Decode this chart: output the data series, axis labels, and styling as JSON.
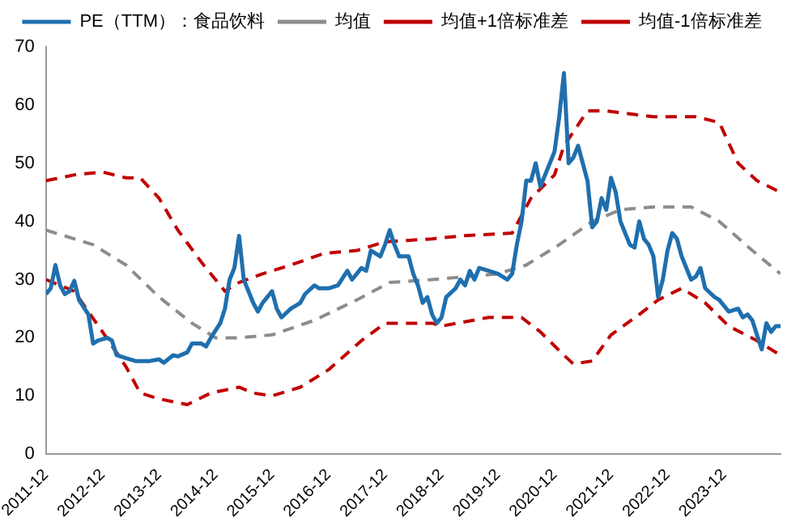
{
  "chart_data": {
    "type": "line",
    "legend": "top",
    "grid": false,
    "marker": "none",
    "xlim": [
      "2011-12",
      "2024-12"
    ],
    "xticks": [
      "2011-12",
      "2012-12",
      "2013-12",
      "2014-12",
      "2015-12",
      "2016-12",
      "2017-12",
      "2018-12",
      "2019-12",
      "2020-12",
      "2021-12",
      "2022-12",
      "2023-12"
    ],
    "ylim": [
      0,
      70
    ],
    "yticks": [
      0,
      10,
      20,
      30,
      40,
      50,
      60,
      70
    ],
    "series": [
      {
        "name": "PE（TTM）：食品饮料",
        "color": "#1f6fae",
        "line_style": "solid",
        "x": [
          "2011-12",
          "2012-01",
          "2012-02",
          "2012-03",
          "2012-04",
          "2012-05",
          "2012-06",
          "2012-07",
          "2012-09",
          "2012-10",
          "2012-11",
          "2013-01",
          "2013-02",
          "2013-03",
          "2013-05",
          "2013-07",
          "2013-10",
          "2013-12",
          "2014-01",
          "2014-03",
          "2014-04",
          "2014-06",
          "2014-07",
          "2014-09",
          "2014-10",
          "2014-11",
          "2015-01",
          "2015-02",
          "2015-03",
          "2015-04",
          "2015-05",
          "2015-06",
          "2015-08",
          "2015-09",
          "2015-10",
          "2015-11",
          "2015-12",
          "2016-01",
          "2016-02",
          "2016-04",
          "2016-06",
          "2016-07",
          "2016-09",
          "2016-10",
          "2016-12",
          "2017-02",
          "2017-04",
          "2017-05",
          "2017-07",
          "2017-08",
          "2017-09",
          "2017-11",
          "2017-12",
          "2018-01",
          "2018-02",
          "2018-03",
          "2018-05",
          "2018-06",
          "2018-07",
          "2018-08",
          "2018-09",
          "2018-10",
          "2018-11",
          "2018-12",
          "2019-01",
          "2019-03",
          "2019-04",
          "2019-05",
          "2019-06",
          "2019-07",
          "2019-08",
          "2019-10",
          "2019-12",
          "2020-02",
          "2020-03",
          "2020-04",
          "2020-05",
          "2020-06",
          "2020-07",
          "2020-08",
          "2020-09",
          "2020-10",
          "2020-11",
          "2020-12",
          "2021-01",
          "2021-02",
          "2021-03",
          "2021-04",
          "2021-05",
          "2021-06",
          "2021-07",
          "2021-08",
          "2021-09",
          "2021-10",
          "2021-11",
          "2021-12",
          "2022-01",
          "2022-02",
          "2022-03",
          "2022-04",
          "2022-05",
          "2022-06",
          "2022-07",
          "2022-08",
          "2022-09",
          "2022-10",
          "2022-11",
          "2022-12",
          "2023-01",
          "2023-02",
          "2023-03",
          "2023-05",
          "2023-06",
          "2023-07",
          "2023-08",
          "2023-10",
          "2023-11",
          "2023-12",
          "2024-01",
          "2024-03",
          "2024-04",
          "2024-05",
          "2024-06",
          "2024-07",
          "2024-08",
          "2024-09",
          "2024-10",
          "2024-11",
          "2024-12"
        ],
        "values": [
          27.5,
          28.5,
          32.5,
          29,
          27.5,
          28,
          29.8,
          26.5,
          24,
          19,
          19.5,
          20,
          19.5,
          17,
          16.5,
          16,
          16,
          16.3,
          15.7,
          17,
          16.8,
          17.5,
          19,
          19,
          18.5,
          20,
          22.5,
          25,
          30,
          32,
          37.5,
          30,
          26,
          24.5,
          26,
          27,
          28,
          25,
          23.5,
          25,
          26,
          27.5,
          29,
          28.5,
          28.5,
          29,
          31.5,
          30,
          32,
          31.5,
          35,
          34,
          36,
          38.5,
          36,
          34,
          34,
          31,
          29,
          26,
          27,
          24,
          22.5,
          23.5,
          27,
          28.5,
          30,
          29,
          31.5,
          30,
          32,
          31.5,
          31,
          30,
          31,
          36,
          40,
          47,
          47,
          50,
          46,
          48,
          50,
          52,
          58,
          65.5,
          50,
          51,
          53,
          50,
          47,
          39,
          40,
          44,
          42,
          47.5,
          45,
          40,
          38,
          36,
          35.5,
          40,
          37,
          36,
          34,
          27,
          30,
          35,
          38,
          37,
          34,
          30,
          30.5,
          32,
          28.5,
          27,
          26.5,
          25.5,
          24.5,
          25,
          23.5,
          24,
          23,
          20.5,
          18,
          22.5,
          21,
          22,
          22
        ]
      },
      {
        "name": "均值",
        "color": "#8c8c8c",
        "line_style": "dashed",
        "x": [
          "2011-12",
          "2012-10",
          "2013-05",
          "2013-12",
          "2014-07",
          "2014-12",
          "2015-05",
          "2015-12",
          "2016-09",
          "2017-06",
          "2018-01",
          "2018-10",
          "2019-12",
          "2020-06",
          "2021-01",
          "2021-08",
          "2022-02",
          "2022-09",
          "2023-05",
          "2023-11",
          "2024-06",
          "2024-12"
        ],
        "values": [
          38.5,
          36,
          32.5,
          27,
          22.5,
          20,
          20,
          20.5,
          23,
          26.5,
          29.5,
          30,
          31,
          32.5,
          36,
          40,
          42,
          42.5,
          42.5,
          40,
          35,
          31
        ]
      },
      {
        "name": "均值+1倍标准差",
        "color": "#c00000",
        "line_style": "dashed",
        "x": [
          "2011-12",
          "2012-06",
          "2012-12",
          "2013-05",
          "2013-08",
          "2013-12",
          "2014-04",
          "2014-09",
          "2015-02",
          "2015-05",
          "2015-10",
          "2016-04",
          "2016-11",
          "2017-06",
          "2017-12",
          "2018-10",
          "2019-04",
          "2020-03",
          "2020-07",
          "2020-12",
          "2021-02",
          "2021-07",
          "2021-11",
          "2022-09",
          "2023-06",
          "2023-11",
          "2024-03",
          "2024-07",
          "2024-12"
        ],
        "values": [
          47,
          48,
          48.5,
          47.5,
          47.5,
          44,
          38.5,
          33,
          28,
          29.5,
          31,
          32.5,
          34.5,
          35,
          36.5,
          37,
          37.5,
          38,
          44,
          48,
          53,
          59,
          59,
          58,
          58,
          57,
          50,
          47,
          45
        ]
      },
      {
        "name": "均值-1倍标准差",
        "color": "#c00000",
        "line_style": "dashed",
        "x": [
          "2011-12",
          "2012-06",
          "2012-12",
          "2013-05",
          "2013-08",
          "2013-12",
          "2014-06",
          "2014-11",
          "2015-05",
          "2015-08",
          "2015-12",
          "2016-06",
          "2016-12",
          "2017-07",
          "2017-12",
          "2018-02",
          "2018-10",
          "2018-12",
          "2019-10",
          "2020-05",
          "2020-09",
          "2021-02",
          "2021-04",
          "2021-08",
          "2021-12",
          "2022-06",
          "2022-10",
          "2023-03",
          "2023-08",
          "2024-01",
          "2024-07",
          "2024-12"
        ],
        "values": [
          30,
          28,
          21,
          15,
          10.5,
          9.5,
          8.5,
          10.5,
          11.5,
          10.5,
          10,
          11.5,
          14.5,
          19.5,
          22.5,
          22.5,
          22.5,
          22,
          23.5,
          23.5,
          21,
          17,
          15.5,
          16,
          20.5,
          24,
          26.5,
          28.5,
          26,
          22,
          19.5,
          17
        ]
      }
    ]
  }
}
